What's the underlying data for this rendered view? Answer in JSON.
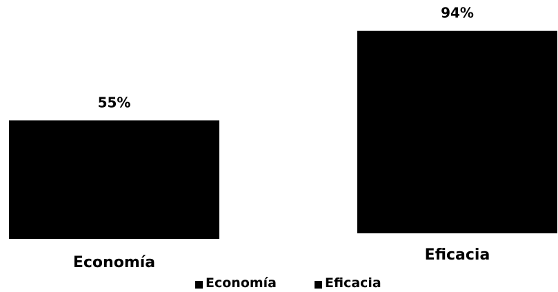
{
  "chart_data": {
    "type": "bar",
    "categories": [
      "Economía",
      "Eficacia"
    ],
    "values": [
      55,
      94
    ],
    "data_labels": [
      "55%",
      "94%"
    ],
    "title": "",
    "xlabel": "",
    "ylabel": "",
    "ylim": [
      0,
      100
    ],
    "grid": false,
    "legend": {
      "position": "bottom",
      "entries": [
        "Economía",
        "Eficacia"
      ]
    },
    "bar_color": "#000000"
  }
}
